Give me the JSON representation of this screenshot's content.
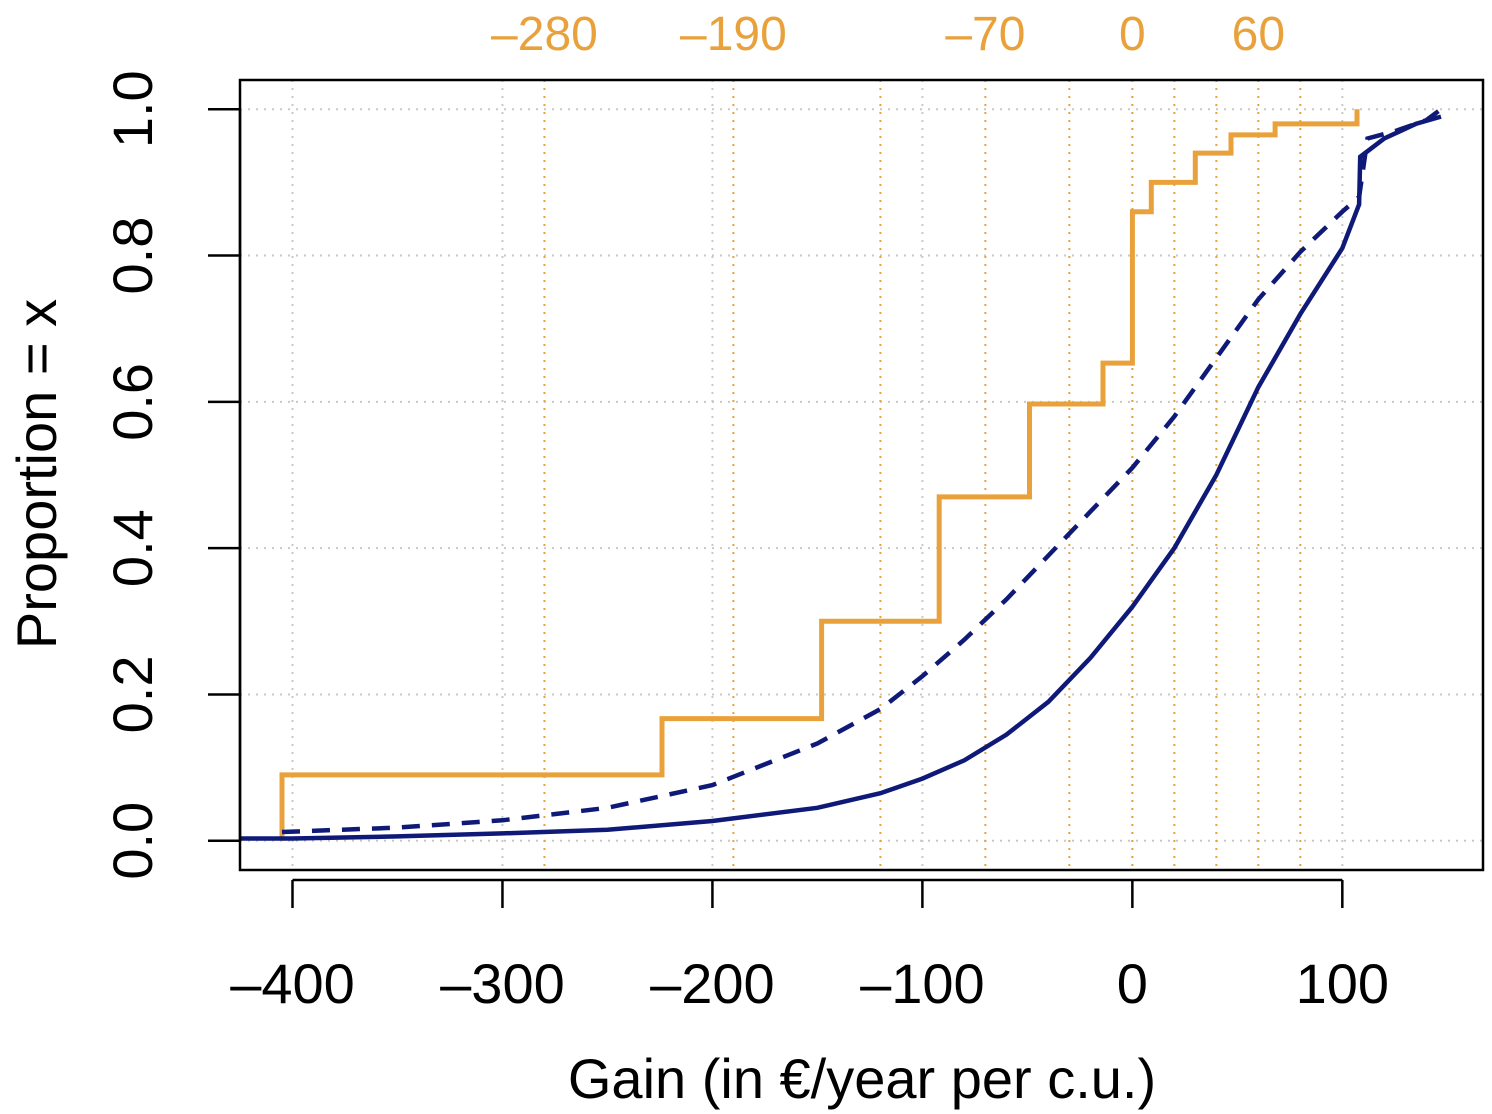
{
  "chart_data": {
    "type": "line",
    "xlabel": "Gain (in €/year per c.u.)",
    "ylabel": "Proportion = x",
    "xlim": [
      -425,
      167
    ],
    "ylim": [
      -0.04,
      1.04
    ],
    "x_ticks": [
      -400,
      -300,
      -200,
      -100,
      0,
      100
    ],
    "x_tick_labels": [
      "–400",
      "–300",
      "–200",
      "–100",
      "0",
      "100"
    ],
    "y_ticks": [
      0.0,
      0.2,
      0.4,
      0.6,
      0.8,
      1.0
    ],
    "y_tick_labels": [
      "0.0",
      "0.2",
      "0.4",
      "0.6",
      "0.8",
      "1.0"
    ],
    "grid": true,
    "grid_x": [
      -400,
      -300,
      -200,
      -100,
      0,
      100
    ],
    "grid_y": [
      0.0,
      0.2,
      0.4,
      0.6,
      0.8,
      1.0
    ],
    "reference_lines": {
      "color": "#E9A23B",
      "x": [
        -280,
        -190,
        -120,
        -70,
        -30,
        0,
        20,
        40,
        60,
        80
      ],
      "labels": [
        {
          "x": -280,
          "text": "–280"
        },
        {
          "x": -190,
          "text": "–190"
        },
        {
          "x": -70,
          "text": "–70"
        },
        {
          "x": 0,
          "text": "0"
        },
        {
          "x": 60,
          "text": "60"
        }
      ]
    },
    "series": [
      {
        "style": "step",
        "color": "#E9A23B",
        "x": [
          -405,
          -405,
          -224,
          -224,
          -148,
          -148,
          -92,
          -92,
          -49,
          -49,
          -14,
          -14,
          0,
          0,
          9,
          9,
          30,
          30,
          47,
          47,
          68,
          68,
          107,
          107
        ],
        "y": [
          0.0,
          0.09,
          0.09,
          0.167,
          0.167,
          0.3,
          0.3,
          0.47,
          0.47,
          0.597,
          0.597,
          0.653,
          0.653,
          0.86,
          0.86,
          0.9,
          0.9,
          0.94,
          0.94,
          0.965,
          0.965,
          0.98,
          0.98,
          1.0
        ]
      },
      {
        "style": "dashed",
        "color": "#0F1A78",
        "x": [
          -405,
          -350,
          -300,
          -250,
          -200,
          -150,
          -120,
          -100,
          -80,
          -60,
          -40,
          -20,
          0,
          20,
          40,
          60,
          80,
          100,
          108,
          112,
          125,
          140,
          147
        ],
        "y": [
          0.012,
          0.018,
          0.028,
          0.045,
          0.076,
          0.133,
          0.18,
          0.225,
          0.275,
          0.33,
          0.39,
          0.45,
          0.51,
          0.58,
          0.66,
          0.74,
          0.805,
          0.86,
          0.88,
          0.96,
          0.97,
          0.985,
          1.0
        ]
      },
      {
        "style": "solid",
        "color": "#0F1A78",
        "x": [
          -425,
          -400,
          -350,
          -300,
          -250,
          -200,
          -150,
          -120,
          -100,
          -80,
          -60,
          -40,
          -20,
          0,
          20,
          40,
          60,
          80,
          100,
          108,
          108.5,
          120,
          135,
          147
        ],
        "y": [
          0.003,
          0.003,
          0.006,
          0.01,
          0.015,
          0.027,
          0.045,
          0.065,
          0.085,
          0.11,
          0.145,
          0.19,
          0.25,
          0.32,
          0.4,
          0.5,
          0.62,
          0.72,
          0.81,
          0.87,
          0.935,
          0.96,
          0.98,
          0.99
        ]
      }
    ]
  }
}
